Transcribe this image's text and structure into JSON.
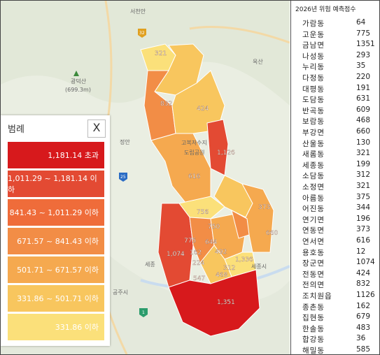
{
  "map": {
    "place_labels": [
      "서천안",
      "광덕산",
      "(699.3m)",
      "정안",
      "옥산",
      "고복저수지",
      "도립공원",
      "세종시",
      "세종",
      "공주시"
    ],
    "road_shields": [
      "25",
      "32",
      "1"
    ]
  },
  "regions": [
    {
      "name": "전의면",
      "value": "832"
    },
    {
      "name": "전동면",
      "value": "424"
    },
    {
      "name": "소정면",
      "value": "321"
    },
    {
      "name": "조치원읍",
      "value": "1126"
    },
    {
      "name": "연서면",
      "value": "616"
    },
    {
      "name": "연동면",
      "value": "373"
    },
    {
      "name": "부강면",
      "value": "660"
    },
    {
      "name": "장군면",
      "value": "1074"
    },
    {
      "name": "금남면",
      "value": "1351"
    },
    {
      "name": "반곡동",
      "value": "609"
    },
    {
      "name": "대평동",
      "value": "191"
    },
    {
      "name": "도담동",
      "value": "631"
    },
    {
      "name": "아름동",
      "value": "375"
    },
    {
      "name": "종촌동",
      "value": "162"
    },
    {
      "name": "보람동",
      "value": "468"
    },
    {
      "name": "소담동",
      "value": "312"
    },
    {
      "name": "고운동",
      "value": "775"
    },
    {
      "name": "연기면",
      "value": "196"
    },
    {
      "name": "집현동",
      "value": "679"
    },
    {
      "name": "세종동",
      "value": "199"
    }
  ],
  "map_value_labels": [
    "321",
    "832",
    "424",
    "1,126",
    "616",
    "373",
    "756",
    "750",
    "660",
    "1,074",
    "775",
    "644",
    "162",
    "492",
    "1,336",
    "312",
    "224",
    "547",
    "468",
    "1,351"
  ],
  "legend": {
    "title": "범례",
    "close_label": "X",
    "classes": [
      {
        "label": "1,181.14 초과",
        "color": "#d7191c"
      },
      {
        "label": "1,011.29 ~ 1,181.14 이하",
        "color": "#e34a33"
      },
      {
        "label": "841.43 ~ 1,011.29 이하",
        "color": "#ef6c3a"
      },
      {
        "label": "671.57 ~ 841.43 이하",
        "color": "#f28d46"
      },
      {
        "label": "501.71 ~ 671.57 이하",
        "color": "#f5a94f"
      },
      {
        "label": "331.86 ~ 501.71 이하",
        "color": "#f8c65e"
      },
      {
        "label": "331.86 이하",
        "color": "#fbe07a"
      }
    ]
  },
  "table": {
    "header": "2026년 위험 예측점수",
    "rows": [
      {
        "name": "가람동",
        "value": "64"
      },
      {
        "name": "고운동",
        "value": "775"
      },
      {
        "name": "금남면",
        "value": "1351"
      },
      {
        "name": "나성동",
        "value": "293"
      },
      {
        "name": "누리동",
        "value": "35"
      },
      {
        "name": "다정동",
        "value": "220"
      },
      {
        "name": "대평동",
        "value": "191"
      },
      {
        "name": "도담동",
        "value": "631"
      },
      {
        "name": "반곡동",
        "value": "609"
      },
      {
        "name": "보람동",
        "value": "468"
      },
      {
        "name": "부강면",
        "value": "660"
      },
      {
        "name": "산울동",
        "value": "130"
      },
      {
        "name": "새롬동",
        "value": "321"
      },
      {
        "name": "세종동",
        "value": "199"
      },
      {
        "name": "소담동",
        "value": "312"
      },
      {
        "name": "소정면",
        "value": "321"
      },
      {
        "name": "아름동",
        "value": "375"
      },
      {
        "name": "어진동",
        "value": "344"
      },
      {
        "name": "연기면",
        "value": "196"
      },
      {
        "name": "연동면",
        "value": "373"
      },
      {
        "name": "연서면",
        "value": "616"
      },
      {
        "name": "용호동",
        "value": "12"
      },
      {
        "name": "장군면",
        "value": "1074"
      },
      {
        "name": "전동면",
        "value": "424"
      },
      {
        "name": "전의면",
        "value": "832"
      },
      {
        "name": "조치원읍",
        "value": "1126"
      },
      {
        "name": "종촌동",
        "value": "162"
      },
      {
        "name": "집현동",
        "value": "679"
      },
      {
        "name": "한솔동",
        "value": "483"
      },
      {
        "name": "합강동",
        "value": "36"
      },
      {
        "name": "해밀동",
        "value": "585"
      }
    ]
  }
}
